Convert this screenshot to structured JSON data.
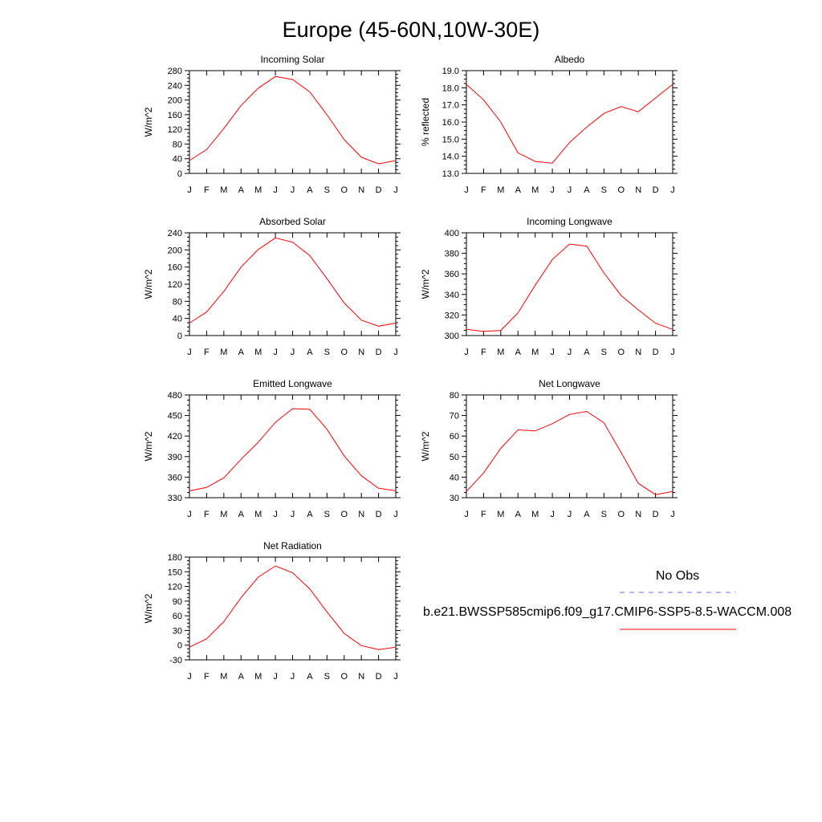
{
  "figure": {
    "title": "Europe (45-60N,10W-30E)"
  },
  "legend": {
    "obs_label": "No Obs",
    "obs_color": "#6b6bff",
    "model_label": "b.e21.BWSSP585cmip6.f09_g17.CMIP6-SSP5-8.5-WACCM.008",
    "model_color": "#ff0000"
  },
  "chart_data": [
    {
      "type": "line",
      "title": "Incoming Solar",
      "ylabel": "W/m^2",
      "xlabel": "",
      "categories": [
        "J",
        "F",
        "M",
        "A",
        "M",
        "J",
        "J",
        "A",
        "S",
        "O",
        "N",
        "D",
        "J"
      ],
      "ylim": [
        0,
        280
      ],
      "yticks": [
        "0",
        "40",
        "80",
        "120",
        "160",
        "200",
        "240",
        "280"
      ],
      "grid": false,
      "series": [
        {
          "values": [
            35,
            65,
            122,
            185,
            232,
            264,
            256,
            222,
            160,
            92,
            44,
            26,
            35
          ],
          "color": "#ff0000"
        }
      ]
    },
    {
      "type": "line",
      "title": "Albedo",
      "ylabel": "% reflected",
      "xlabel": "",
      "categories": [
        "J",
        "F",
        "M",
        "A",
        "M",
        "J",
        "J",
        "A",
        "S",
        "O",
        "N",
        "D",
        "J"
      ],
      "ylim": [
        13.0,
        19.0
      ],
      "yticks": [
        "13.0",
        "14.0",
        "15.0",
        "16.0",
        "17.0",
        "18.0",
        "19.0"
      ],
      "grid": false,
      "series": [
        {
          "values": [
            18.2,
            17.3,
            16.0,
            14.2,
            13.7,
            13.6,
            14.8,
            15.7,
            16.5,
            16.9,
            16.6,
            17.4,
            18.2
          ],
          "color": "#ff0000"
        }
      ]
    },
    {
      "type": "line",
      "title": "Absorbed Solar",
      "ylabel": "W/m^2",
      "xlabel": "",
      "categories": [
        "J",
        "F",
        "M",
        "A",
        "M",
        "J",
        "J",
        "A",
        "S",
        "O",
        "N",
        "D",
        "J"
      ],
      "ylim": [
        0,
        240
      ],
      "yticks": [
        "0",
        "40",
        "80",
        "120",
        "160",
        "200",
        "240"
      ],
      "grid": false,
      "series": [
        {
          "values": [
            29,
            55,
            103,
            160,
            201,
            228,
            218,
            187,
            133,
            76,
            36,
            22,
            29
          ],
          "color": "#ff0000"
        }
      ]
    },
    {
      "type": "line",
      "title": "Incoming Longwave",
      "ylabel": "W/m^2",
      "xlabel": "",
      "categories": [
        "J",
        "F",
        "M",
        "A",
        "M",
        "J",
        "J",
        "A",
        "S",
        "O",
        "N",
        "D",
        "J"
      ],
      "ylim": [
        300,
        400
      ],
      "yticks": [
        "300",
        "320",
        "340",
        "360",
        "380",
        "400"
      ],
      "grid": false,
      "series": [
        {
          "values": [
            306,
            304,
            305,
            322,
            349,
            374,
            389,
            387,
            361,
            339,
            325,
            312,
            306
          ],
          "color": "#ff0000"
        }
      ]
    },
    {
      "type": "line",
      "title": "Emitted Longwave",
      "ylabel": "W/m^2",
      "xlabel": "",
      "categories": [
        "J",
        "F",
        "M",
        "A",
        "M",
        "J",
        "J",
        "A",
        "S",
        "O",
        "N",
        "D",
        "J"
      ],
      "ylim": [
        330,
        480
      ],
      "yticks": [
        "330",
        "360",
        "390",
        "420",
        "450",
        "480"
      ],
      "grid": false,
      "series": [
        {
          "values": [
            340,
            345,
            359,
            386,
            411,
            440,
            460,
            459,
            430,
            391,
            362,
            344,
            340
          ],
          "color": "#ff0000"
        }
      ]
    },
    {
      "type": "line",
      "title": "Net Longwave",
      "ylabel": "W/m^2",
      "xlabel": "",
      "categories": [
        "J",
        "F",
        "M",
        "A",
        "M",
        "J",
        "J",
        "A",
        "S",
        "O",
        "N",
        "D",
        "J"
      ],
      "ylim": [
        30,
        80
      ],
      "yticks": [
        "30",
        "40",
        "50",
        "60",
        "70",
        "80"
      ],
      "grid": false,
      "series": [
        {
          "values": [
            33,
            42,
            54,
            63,
            62.5,
            66,
            70.5,
            72,
            66.5,
            52,
            37,
            31.5,
            33
          ],
          "color": "#ff0000"
        }
      ]
    },
    {
      "type": "line",
      "title": "Net Radiation",
      "ylabel": "W/m^2",
      "xlabel": "",
      "categories": [
        "J",
        "F",
        "M",
        "A",
        "M",
        "J",
        "J",
        "A",
        "S",
        "O",
        "N",
        "D",
        "J"
      ],
      "ylim": [
        -30,
        180
      ],
      "yticks": [
        "-30",
        "0",
        "30",
        "60",
        "90",
        "120",
        "150",
        "180"
      ],
      "grid": false,
      "series": [
        {
          "values": [
            -4,
            13,
            48,
            97,
            139,
            162,
            148,
            115,
            68,
            24,
            -1,
            -9,
            -4
          ],
          "color": "#ff0000"
        }
      ]
    }
  ]
}
